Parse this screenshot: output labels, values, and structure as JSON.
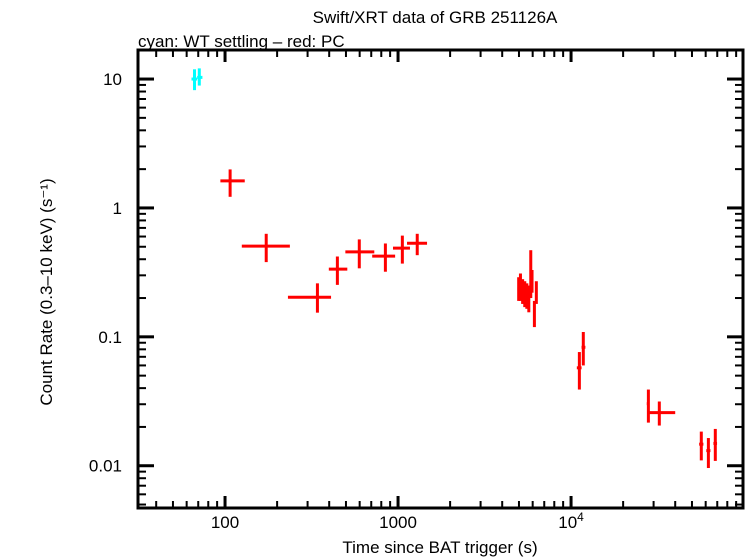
{
  "chart_data": {
    "type": "scatter",
    "title": "Swift/XRT data of GRB 251126A",
    "subtitle": "cyan: WT settling – red: PC",
    "xlabel": "Time since BAT trigger (s)",
    "ylabel": "Count Rate (0.3–10 keV) (s⁻¹)",
    "xscale": "log",
    "yscale": "log",
    "xlim": [
      31.4,
      98600
    ],
    "ylim": [
      0.0047,
      16.8
    ],
    "x_tick_labels": [
      {
        "value": 100,
        "label": "100"
      },
      {
        "value": 1000,
        "label": "1000"
      },
      {
        "value": 10000,
        "label": "10⁴"
      }
    ],
    "y_tick_labels": [
      {
        "value": 10,
        "label": "10"
      },
      {
        "value": 1,
        "label": "1"
      },
      {
        "value": 0.1,
        "label": "0.1"
      },
      {
        "value": 0.01,
        "label": "0.01"
      }
    ],
    "grid": false,
    "series": [
      {
        "mode": "WT settling",
        "color": "#00ffff",
        "points_fields": [
          "t",
          "t_lo",
          "t_hi",
          "rate",
          "rate_lo",
          "rate_hi"
        ],
        "points": [
          [
            66.6,
            64,
            69,
            10.0,
            8.2,
            11.9
          ],
          [
            71,
            69,
            74,
            10.3,
            8.9,
            12.1
          ]
        ]
      },
      {
        "mode": "PC",
        "color": "#ff0000",
        "points_fields": [
          "t",
          "t_lo",
          "t_hi",
          "rate",
          "rate_lo",
          "rate_hi"
        ],
        "points": [
          [
            107,
            94,
            130,
            1.62,
            1.22,
            1.99
          ],
          [
            173,
            125,
            237,
            0.505,
            0.38,
            0.63
          ],
          [
            342,
            231,
            410,
            0.203,
            0.154,
            0.26
          ],
          [
            446,
            398,
            509,
            0.335,
            0.253,
            0.42
          ],
          [
            597,
            496,
            729,
            0.456,
            0.34,
            0.57
          ],
          [
            845,
            709,
            962,
            0.423,
            0.32,
            0.53
          ],
          [
            1059,
            935,
            1172,
            0.488,
            0.37,
            0.61
          ],
          [
            1291,
            1127,
            1471,
            0.532,
            0.43,
            0.63
          ],
          [
            4980,
            4900,
            5060,
            0.235,
            0.19,
            0.29
          ],
          [
            5100,
            5050,
            5160,
            0.24,
            0.19,
            0.31
          ],
          [
            5250,
            5180,
            5320,
            0.22,
            0.18,
            0.28
          ],
          [
            5400,
            5330,
            5470,
            0.21,
            0.17,
            0.27
          ],
          [
            5550,
            5480,
            5620,
            0.2,
            0.165,
            0.26
          ],
          [
            5700,
            5640,
            5760,
            0.19,
            0.155,
            0.25
          ],
          [
            5850,
            5800,
            5900,
            0.25,
            0.2,
            0.47
          ],
          [
            5950,
            5900,
            6010,
            0.27,
            0.22,
            0.33
          ],
          [
            6140,
            6060,
            6230,
            0.155,
            0.119,
            0.19
          ],
          [
            6300,
            6220,
            6380,
            0.226,
            0.18,
            0.27
          ],
          [
            11170,
            10800,
            11500,
            0.0575,
            0.039,
            0.0762
          ],
          [
            11770,
            11500,
            12100,
            0.083,
            0.06,
            0.109
          ],
          [
            27990,
            27400,
            28400,
            0.0303,
            0.0216,
            0.039
          ],
          [
            32370,
            28400,
            40000,
            0.0258,
            0.0205,
            0.0315
          ],
          [
            56600,
            55000,
            58200,
            0.0147,
            0.011,
            0.0184
          ],
          [
            62200,
            60500,
            63900,
            0.0131,
            0.0096,
            0.0164
          ],
          [
            68200,
            66500,
            69800,
            0.0149,
            0.0109,
            0.0193
          ]
        ]
      }
    ]
  }
}
